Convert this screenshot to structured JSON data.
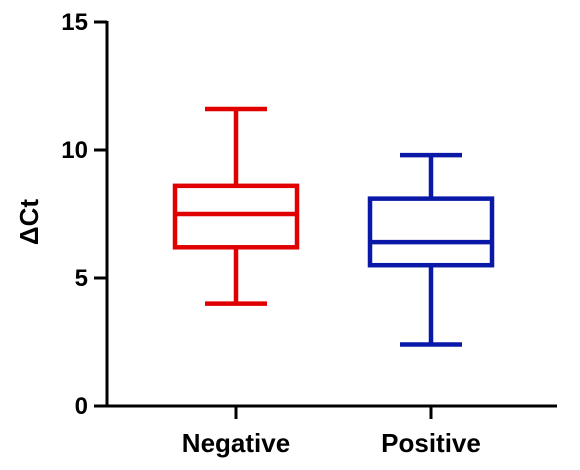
{
  "chart_data": {
    "type": "box",
    "title": "",
    "xlabel": "",
    "ylabel": "ΔCt",
    "ylim": [
      0,
      15
    ],
    "yticks": [
      0,
      5,
      10,
      15
    ],
    "grid": false,
    "categories": [
      "Negative",
      "Positive"
    ],
    "series": [
      {
        "category": "Negative",
        "min": 4.0,
        "q1": 6.2,
        "median": 7.5,
        "q3": 8.6,
        "max": 11.6,
        "color": "#e00000"
      },
      {
        "category": "Positive",
        "min": 2.4,
        "q1": 5.5,
        "median": 6.4,
        "q3": 8.1,
        "max": 9.8,
        "color": "#0a18a8"
      }
    ]
  }
}
